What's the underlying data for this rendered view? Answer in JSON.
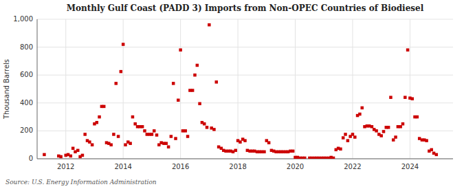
{
  "chart_data": {
    "type": "scatter",
    "title": "Monthly Gulf Coast (PADD 3) Imports from Non-OPEC Countries of Biodiesel",
    "ylabel": "Thousand Barrels",
    "source": "Source: U.S. Energy Information Administration",
    "color": "#cc0000",
    "marker": "square",
    "grid": true,
    "xlim": [
      2011.0,
      2025.5
    ],
    "xticks": [
      2012,
      2014,
      2016,
      2018,
      2020,
      2022,
      2024
    ],
    "ylim": [
      0,
      1000
    ],
    "yticks": [
      0,
      200,
      400,
      600,
      800,
      {
        "value": 1000,
        "label": "1,000"
      }
    ],
    "x": [
      2011.25,
      2011.75,
      2011.83,
      2012.0,
      2012.08,
      2012.17,
      2012.25,
      2012.33,
      2012.42,
      2012.5,
      2012.58,
      2012.67,
      2012.75,
      2012.83,
      2012.92,
      2013.0,
      2013.08,
      2013.17,
      2013.25,
      2013.33,
      2013.42,
      2013.5,
      2013.58,
      2013.67,
      2013.75,
      2013.83,
      2013.92,
      2014.0,
      2014.08,
      2014.17,
      2014.25,
      2014.33,
      2014.42,
      2014.5,
      2014.58,
      2014.67,
      2014.75,
      2014.83,
      2014.92,
      2015.0,
      2015.08,
      2015.17,
      2015.25,
      2015.33,
      2015.42,
      2015.5,
      2015.58,
      2015.67,
      2015.75,
      2015.83,
      2015.92,
      2016.0,
      2016.08,
      2016.17,
      2016.25,
      2016.33,
      2016.42,
      2016.5,
      2016.58,
      2016.67,
      2016.75,
      2016.83,
      2016.92,
      2017.0,
      2017.08,
      2017.17,
      2017.25,
      2017.33,
      2017.42,
      2017.5,
      2017.58,
      2017.67,
      2017.75,
      2017.83,
      2017.92,
      2018.0,
      2018.08,
      2018.17,
      2018.25,
      2018.33,
      2018.42,
      2018.5,
      2018.58,
      2018.67,
      2018.75,
      2018.83,
      2018.92,
      2019.0,
      2019.08,
      2019.17,
      2019.25,
      2019.33,
      2019.42,
      2019.5,
      2019.58,
      2019.67,
      2019.75,
      2019.83,
      2019.92,
      2020.0,
      2020.08,
      2020.17,
      2020.25,
      2020.33,
      2020.5,
      2020.58,
      2020.67,
      2020.75,
      2020.83,
      2020.92,
      2021.0,
      2021.08,
      2021.17,
      2021.25,
      2021.33,
      2021.42,
      2021.5,
      2021.58,
      2021.67,
      2021.75,
      2021.83,
      2021.92,
      2022.0,
      2022.08,
      2022.17,
      2022.25,
      2022.33,
      2022.42,
      2022.5,
      2022.58,
      2022.67,
      2022.75,
      2022.83,
      2022.92,
      2023.0,
      2023.08,
      2023.17,
      2023.25,
      2023.33,
      2023.42,
      2023.5,
      2023.58,
      2023.67,
      2023.75,
      2023.83,
      2023.92,
      2024.0,
      2024.08,
      2024.17,
      2024.25,
      2024.33,
      2024.42,
      2024.5,
      2024.58,
      2024.67,
      2024.75,
      2024.83,
      2024.92
    ],
    "values": [
      30,
      20,
      15,
      25,
      30,
      20,
      75,
      50,
      60,
      15,
      25,
      175,
      130,
      120,
      100,
      250,
      260,
      300,
      375,
      375,
      115,
      110,
      100,
      175,
      540,
      160,
      625,
      820,
      100,
      120,
      110,
      300,
      250,
      230,
      230,
      230,
      200,
      175,
      175,
      175,
      200,
      170,
      100,
      115,
      110,
      110,
      85,
      160,
      540,
      145,
      420,
      780,
      200,
      200,
      160,
      490,
      490,
      600,
      670,
      395,
      260,
      250,
      225,
      960,
      220,
      210,
      550,
      85,
      75,
      60,
      55,
      55,
      55,
      50,
      60,
      130,
      120,
      140,
      130,
      60,
      55,
      55,
      55,
      50,
      50,
      50,
      50,
      130,
      115,
      60,
      55,
      50,
      50,
      50,
      50,
      50,
      50,
      55,
      55,
      10,
      10,
      5,
      5,
      5,
      5,
      5,
      5,
      5,
      5,
      5,
      5,
      5,
      5,
      10,
      5,
      65,
      75,
      70,
      150,
      175,
      130,
      160,
      175,
      155,
      310,
      320,
      365,
      230,
      235,
      235,
      230,
      210,
      200,
      175,
      165,
      195,
      225,
      225,
      440,
      135,
      155,
      230,
      230,
      250,
      440,
      780,
      435,
      430,
      300,
      300,
      145,
      135,
      135,
      130,
      55,
      65,
      40,
      30
    ]
  }
}
